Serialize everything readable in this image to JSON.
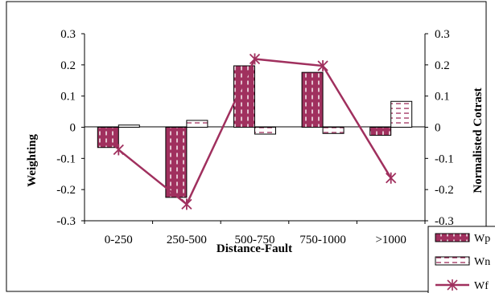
{
  "chart_data": {
    "type": "bar",
    "categories": [
      "0-250",
      "250-500",
      "500-750",
      "750-1000",
      ">1000"
    ],
    "series": [
      {
        "name": "Wp",
        "kind": "bar",
        "axis": "left",
        "values": [
          -0.065,
          -0.225,
          0.197,
          0.176,
          -0.026
        ],
        "color": "#a0305e",
        "pattern": "vertical-dash"
      },
      {
        "name": "Wn",
        "kind": "bar",
        "axis": "left",
        "values": [
          0.007,
          0.022,
          -0.022,
          -0.02,
          0.083
        ],
        "color": "#a0305e",
        "pattern": "horizontal-dash"
      },
      {
        "name": "Wf",
        "kind": "line",
        "axis": "right",
        "values": [
          -0.072,
          -0.247,
          0.219,
          0.197,
          -0.163
        ],
        "color": "#a0305e",
        "marker": "asterisk"
      }
    ],
    "xlabel": "Distance-Fault",
    "ylabel": "Weighting",
    "y2label": "Normalisted Cotrast",
    "ylim": [
      -0.3,
      0.3
    ],
    "y2lim": [
      -0.3,
      0.3
    ],
    "yticks": [
      "0.3",
      "0.2",
      "0.1",
      "0",
      "-0.1",
      "-0.2",
      "-0.3"
    ],
    "y2ticks": [
      "0.3",
      "0.2",
      "0.1",
      "0",
      "-0.1",
      "-0.2",
      "-0.3"
    ],
    "grid": false,
    "legend": "bottom-right"
  }
}
